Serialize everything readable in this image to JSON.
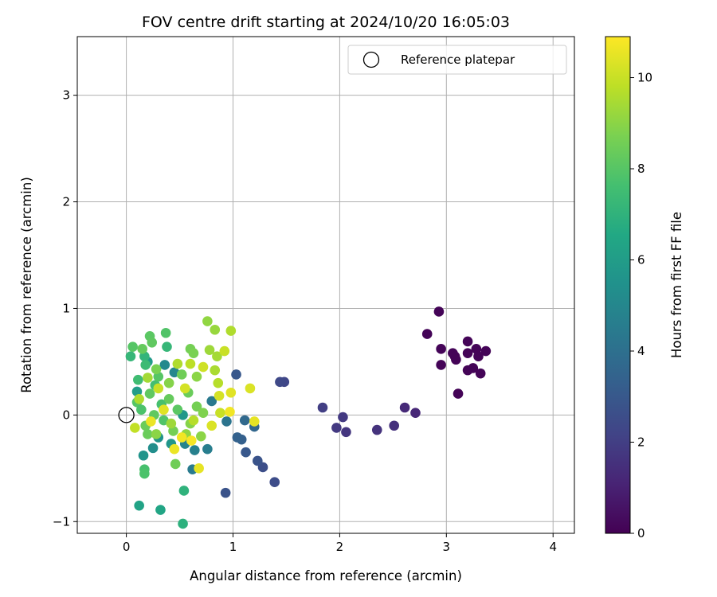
{
  "chart_data": {
    "type": "scatter",
    "title": "FOV centre drift starting at 2024/10/20 16:05:03",
    "xlabel": "Angular distance from reference (arcmin)",
    "ylabel": "Rotation from reference (arcmin)",
    "xlim": [
      -0.46,
      4.2
    ],
    "ylim": [
      -1.11,
      3.55
    ],
    "xticks": [
      "0",
      "1",
      "2",
      "3",
      "4"
    ],
    "yticks": [
      "−1",
      "0",
      "1",
      "2",
      "3"
    ],
    "grid": true,
    "legend": {
      "label": "Reference platepar",
      "placement": "top-right"
    },
    "reference_point": {
      "x": 0,
      "y": 0
    },
    "colorbar": {
      "label": "Hours from first FF file",
      "colormap": "viridis",
      "range": [
        0,
        10.9
      ],
      "ticks": [
        "0",
        "2",
        "4",
        "6",
        "8",
        "10"
      ]
    },
    "points": [
      {
        "x": 2.93,
        "y": 0.97,
        "h": 0.1
      },
      {
        "x": 2.82,
        "y": 0.76,
        "h": 0.1
      },
      {
        "x": 3.2,
        "y": 0.69,
        "h": 0.1
      },
      {
        "x": 2.95,
        "y": 0.62,
        "h": 0.1
      },
      {
        "x": 3.28,
        "y": 0.62,
        "h": 0.1
      },
      {
        "x": 3.37,
        "y": 0.6,
        "h": 0.1
      },
      {
        "x": 3.06,
        "y": 0.58,
        "h": 0.1
      },
      {
        "x": 3.2,
        "y": 0.58,
        "h": 0.1
      },
      {
        "x": 3.08,
        "y": 0.55,
        "h": 0.1
      },
      {
        "x": 3.3,
        "y": 0.55,
        "h": 0.1
      },
      {
        "x": 3.09,
        "y": 0.52,
        "h": 0.1
      },
      {
        "x": 2.95,
        "y": 0.47,
        "h": 0.1
      },
      {
        "x": 3.25,
        "y": 0.44,
        "h": 0.1
      },
      {
        "x": 3.2,
        "y": 0.42,
        "h": 0.1
      },
      {
        "x": 3.32,
        "y": 0.39,
        "h": 0.1
      },
      {
        "x": 3.11,
        "y": 0.2,
        "h": 0.1
      },
      {
        "x": 2.71,
        "y": 0.02,
        "h": 1.2
      },
      {
        "x": 2.61,
        "y": 0.07,
        "h": 1.3
      },
      {
        "x": 2.51,
        "y": -0.1,
        "h": 1.5
      },
      {
        "x": 2.35,
        "y": -0.14,
        "h": 1.6
      },
      {
        "x": 2.06,
        "y": -0.16,
        "h": 1.7
      },
      {
        "x": 2.03,
        "y": -0.02,
        "h": 1.8
      },
      {
        "x": 1.97,
        "y": -0.12,
        "h": 1.8
      },
      {
        "x": 1.84,
        "y": 0.07,
        "h": 2.0
      },
      {
        "x": 1.48,
        "y": 0.31,
        "h": 2.3
      },
      {
        "x": 1.44,
        "y": 0.31,
        "h": 2.4
      },
      {
        "x": 1.39,
        "y": -0.63,
        "h": 2.5
      },
      {
        "x": 1.28,
        "y": -0.49,
        "h": 2.6
      },
      {
        "x": 1.23,
        "y": -0.43,
        "h": 2.8
      },
      {
        "x": 1.12,
        "y": -0.35,
        "h": 3.0
      },
      {
        "x": 0.93,
        "y": -0.73,
        "h": 2.8
      },
      {
        "x": 1.03,
        "y": 0.38,
        "h": 3.0
      },
      {
        "x": 1.08,
        "y": -0.23,
        "h": 3.3
      },
      {
        "x": 1.04,
        "y": -0.21,
        "h": 3.4
      },
      {
        "x": 1.2,
        "y": -0.11,
        "h": 3.6
      },
      {
        "x": 1.11,
        "y": -0.05,
        "h": 3.7
      },
      {
        "x": 0.94,
        "y": -0.06,
        "h": 4.2
      },
      {
        "x": 0.8,
        "y": 0.13,
        "h": 4.4
      },
      {
        "x": 0.62,
        "y": -0.51,
        "h": 4.5
      },
      {
        "x": 0.76,
        "y": -0.32,
        "h": 4.6
      },
      {
        "x": 0.64,
        "y": -0.33,
        "h": 4.7
      },
      {
        "x": 0.55,
        "y": -0.27,
        "h": 4.9
      },
      {
        "x": 0.45,
        "y": 0.4,
        "h": 5.0
      },
      {
        "x": 0.36,
        "y": 0.47,
        "h": 5.1
      },
      {
        "x": 0.25,
        "y": -0.31,
        "h": 5.3
      },
      {
        "x": 0.3,
        "y": -0.21,
        "h": 5.5
      },
      {
        "x": 0.16,
        "y": -0.38,
        "h": 5.6
      },
      {
        "x": 0.42,
        "y": -0.27,
        "h": 5.7
      },
      {
        "x": 0.53,
        "y": 0.0,
        "h": 5.8
      },
      {
        "x": 0.2,
        "y": 0.5,
        "h": 5.9
      },
      {
        "x": 0.1,
        "y": 0.22,
        "h": 6.0
      },
      {
        "x": 0.12,
        "y": -0.85,
        "h": 6.3
      },
      {
        "x": 0.32,
        "y": -0.89,
        "h": 6.4
      },
      {
        "x": 0.53,
        "y": -1.02,
        "h": 6.9
      },
      {
        "x": 0.54,
        "y": -0.71,
        "h": 7.0
      },
      {
        "x": 0.04,
        "y": 0.55,
        "h": 7.2
      },
      {
        "x": 0.17,
        "y": 0.55,
        "h": 7.1
      },
      {
        "x": 0.38,
        "y": 0.64,
        "h": 7.2
      },
      {
        "x": 0.18,
        "y": 0.47,
        "h": 7.4
      },
      {
        "x": 0.11,
        "y": 0.33,
        "h": 7.5
      },
      {
        "x": 0.27,
        "y": 0.28,
        "h": 7.6
      },
      {
        "x": 0.17,
        "y": -0.51,
        "h": 7.7
      },
      {
        "x": 0.17,
        "y": -0.55,
        "h": 7.8
      },
      {
        "x": 0.37,
        "y": 0.77,
        "h": 7.9
      },
      {
        "x": 0.06,
        "y": 0.64,
        "h": 8.0
      },
      {
        "x": 0.22,
        "y": 0.74,
        "h": 8.1
      },
      {
        "x": 0.24,
        "y": 0.68,
        "h": 8.2
      },
      {
        "x": 0.15,
        "y": 0.62,
        "h": 8.3
      },
      {
        "x": 0.2,
        "y": -0.18,
        "h": 8.4
      },
      {
        "x": 0.46,
        "y": -0.46,
        "h": 8.5
      },
      {
        "x": 0.6,
        "y": 0.62,
        "h": 8.6
      },
      {
        "x": 0.63,
        "y": 0.58,
        "h": 8.7
      },
      {
        "x": 0.1,
        "y": 0.12,
        "h": 8.0
      },
      {
        "x": 0.14,
        "y": 0.05,
        "h": 7.8
      },
      {
        "x": 0.26,
        "y": 0.0,
        "h": 8.2
      },
      {
        "x": 0.33,
        "y": 0.1,
        "h": 7.7
      },
      {
        "x": 0.4,
        "y": 0.15,
        "h": 8.3
      },
      {
        "x": 0.48,
        "y": 0.05,
        "h": 8.1
      },
      {
        "x": 0.35,
        "y": -0.05,
        "h": 7.9
      },
      {
        "x": 0.58,
        "y": 0.21,
        "h": 8.4
      },
      {
        "x": 0.66,
        "y": 0.08,
        "h": 8.6
      },
      {
        "x": 0.72,
        "y": 0.02,
        "h": 8.8
      },
      {
        "x": 0.52,
        "y": 0.38,
        "h": 8.5
      },
      {
        "x": 0.3,
        "y": 0.36,
        "h": 8.0
      },
      {
        "x": 0.22,
        "y": 0.2,
        "h": 8.2
      },
      {
        "x": 0.18,
        "y": -0.1,
        "h": 8.4
      },
      {
        "x": 0.44,
        "y": -0.15,
        "h": 8.6
      },
      {
        "x": 0.6,
        "y": -0.08,
        "h": 8.9
      },
      {
        "x": 0.7,
        "y": -0.2,
        "h": 9.0
      },
      {
        "x": 0.56,
        "y": -0.18,
        "h": 9.1
      },
      {
        "x": 0.28,
        "y": 0.43,
        "h": 8.7
      },
      {
        "x": 0.4,
        "y": 0.3,
        "h": 8.9
      },
      {
        "x": 0.66,
        "y": 0.36,
        "h": 9.0
      },
      {
        "x": 0.76,
        "y": 0.88,
        "h": 9.1
      },
      {
        "x": 0.83,
        "y": 0.8,
        "h": 9.2
      },
      {
        "x": 0.78,
        "y": 0.61,
        "h": 9.3
      },
      {
        "x": 0.85,
        "y": 0.55,
        "h": 9.4
      },
      {
        "x": 0.83,
        "y": 0.42,
        "h": 9.5
      },
      {
        "x": 0.98,
        "y": 0.79,
        "h": 9.6
      },
      {
        "x": 0.86,
        "y": 0.3,
        "h": 9.7
      },
      {
        "x": 0.6,
        "y": 0.48,
        "h": 9.8
      },
      {
        "x": 0.92,
        "y": 0.6,
        "h": 10.0
      },
      {
        "x": 0.72,
        "y": 0.45,
        "h": 10.1
      },
      {
        "x": 0.87,
        "y": 0.18,
        "h": 10.2
      },
      {
        "x": 1.16,
        "y": 0.25,
        "h": 10.3
      },
      {
        "x": 0.98,
        "y": 0.21,
        "h": 10.4
      },
      {
        "x": 1.2,
        "y": -0.06,
        "h": 10.5
      },
      {
        "x": 0.68,
        "y": -0.5,
        "h": 10.5
      },
      {
        "x": 0.45,
        "y": -0.32,
        "h": 10.6
      },
      {
        "x": 0.52,
        "y": -0.21,
        "h": 10.7
      },
      {
        "x": 0.61,
        "y": -0.24,
        "h": 10.8
      },
      {
        "x": 0.23,
        "y": -0.06,
        "h": 10.6
      },
      {
        "x": 0.35,
        "y": 0.05,
        "h": 10.4
      },
      {
        "x": 0.55,
        "y": 0.25,
        "h": 10.2
      },
      {
        "x": 0.3,
        "y": 0.25,
        "h": 10.0
      },
      {
        "x": 0.08,
        "y": -0.12,
        "h": 9.9
      },
      {
        "x": 0.12,
        "y": 0.15,
        "h": 9.6
      },
      {
        "x": 0.2,
        "y": 0.35,
        "h": 9.4
      },
      {
        "x": 0.48,
        "y": 0.48,
        "h": 9.6
      },
      {
        "x": 0.88,
        "y": 0.02,
        "h": 10.0
      },
      {
        "x": 0.8,
        "y": -0.1,
        "h": 10.3
      },
      {
        "x": 0.97,
        "y": 0.03,
        "h": 10.7
      },
      {
        "x": 0.63,
        "y": -0.05,
        "h": 9.7
      },
      {
        "x": 0.42,
        "y": -0.08,
        "h": 9.3
      },
      {
        "x": 0.28,
        "y": -0.18,
        "h": 9.0
      }
    ]
  }
}
